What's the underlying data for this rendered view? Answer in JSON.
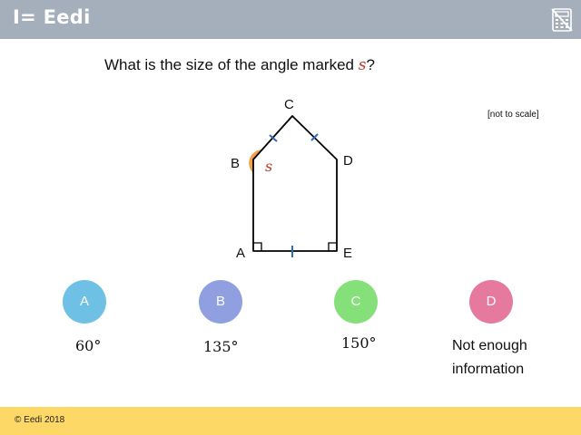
{
  "header": {
    "logo_text": "I= Eedi",
    "calculator_icon": "calculator-crossed-icon"
  },
  "question": {
    "prefix": "What is the size of the angle marked ",
    "variable": "s",
    "suffix": "?"
  },
  "diagram": {
    "note": "[not to scale]",
    "vertex_labels": {
      "A": "A",
      "B": "B",
      "C": "C",
      "D": "D",
      "E": "E"
    },
    "angle_label": "s",
    "colors": {
      "angle_fill": "#f0a050",
      "tick": "#2a6db5",
      "outline": "#000000"
    }
  },
  "options": [
    {
      "letter": "A",
      "text": "60°",
      "color": "#6ec1e4"
    },
    {
      "letter": "B",
      "text": "135°",
      "color": "#8f9fe0"
    },
    {
      "letter": "C",
      "text": "150°",
      "color": "#86e07a"
    },
    {
      "letter": "D",
      "text_line1": "Not enough",
      "text_line2": "information",
      "color": "#e6799e"
    }
  ],
  "footer": {
    "copyright": "© Eedi 2018"
  }
}
